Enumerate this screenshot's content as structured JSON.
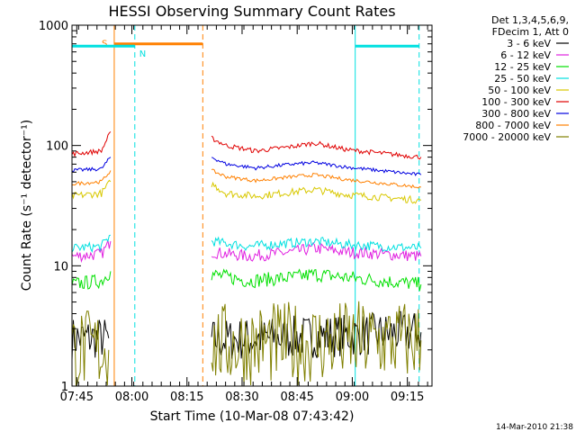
{
  "chart_data": {
    "type": "line",
    "title": "HESSI Observing Summary Count Rates",
    "xlabel": "Start Time (10-Mar-08 07:43:42)",
    "ylabel": "Count Rate (s⁻¹ detector⁻¹)",
    "x_unit": "minutes after 07:43:42",
    "xlim": [
      0,
      98
    ],
    "ylim": [
      1,
      1000
    ],
    "y_scale": "log",
    "x_ticks": [
      {
        "label": "07:45",
        "value": 1.3
      },
      {
        "label": "08:00",
        "value": 16.3
      },
      {
        "label": "08:15",
        "value": 31.3
      },
      {
        "label": "08:30",
        "value": 46.3
      },
      {
        "label": "08:45",
        "value": 61.3
      },
      {
        "label": "09:00",
        "value": 76.3
      },
      {
        "label": "09:15",
        "value": 91.3
      }
    ],
    "y_ticks": [
      {
        "label": "1",
        "value": 1
      },
      {
        "label": "10",
        "value": 10
      },
      {
        "label": "100",
        "value": 100
      },
      {
        "label": "1000",
        "value": 1000
      }
    ],
    "legend": {
      "placement": "top-right",
      "header": [
        "Det 1,3,4,5,6,9,",
        "FDecim 1, Att 0"
      ]
    },
    "series": [
      {
        "name": "3 - 6 keV",
        "color": "#000000",
        "segments": [
          {
            "x": [
              0,
              10
            ],
            "y": [
              2.5,
              2.5
            ]
          },
          {
            "x": [
              38,
              95
            ],
            "y": [
              2.4,
              2.8
            ]
          }
        ],
        "noise": 0.18
      },
      {
        "name": "6 - 12 keV",
        "color": "#e020e0",
        "segments": [
          {
            "x": [
              0,
              8,
              10.5
            ],
            "y": [
              12,
              12.5,
              16
            ]
          },
          {
            "x": [
              38,
              48,
              60,
              66,
              75,
              95
            ],
            "y": [
              13,
              12,
              13,
              14,
              13,
              12
            ]
          }
        ],
        "noise": 0.05
      },
      {
        "name": "12 - 25 keV",
        "color": "#00e000",
        "segments": [
          {
            "x": [
              0,
              8,
              10.5
            ],
            "y": [
              7,
              7.5,
              9
            ]
          },
          {
            "x": [
              38,
              48,
              60,
              66,
              75,
              95
            ],
            "y": [
              8.5,
              7.5,
              8,
              8.5,
              8,
              7
            ]
          }
        ],
        "noise": 0.06
      },
      {
        "name": "25 - 50 keV",
        "color": "#00e0e0",
        "segments": [
          {
            "x": [
              0,
              8,
              10.5
            ],
            "y": [
              14,
              14.5,
              18
            ]
          },
          {
            "x": [
              38,
              48,
              60,
              66,
              75,
              95
            ],
            "y": [
              16,
              14.5,
              15.5,
              16,
              15,
              14
            ]
          }
        ],
        "noise": 0.04
      },
      {
        "name": "50 - 100 keV",
        "color": "#d8c800",
        "segments": [
          {
            "x": [
              0,
              8,
              10.5
            ],
            "y": [
              38,
              40,
              50
            ]
          },
          {
            "x": [
              38,
              42,
              50,
              60,
              66,
              75,
              95
            ],
            "y": [
              48,
              40,
              38,
              41,
              43,
              39,
              35
            ]
          }
        ],
        "noise": 0.03
      },
      {
        "name": "100 - 300 keV",
        "color": "#e00000",
        "segments": [
          {
            "x": [
              0,
              8,
              10.5
            ],
            "y": [
              85,
              90,
              130
            ]
          },
          {
            "x": [
              38,
              42,
              50,
              60,
              66,
              75,
              95
            ],
            "y": [
              115,
              100,
              90,
              98,
              105,
              92,
              80
            ]
          }
        ],
        "noise": 0.02
      },
      {
        "name": "300 - 800 keV",
        "color": "#0000e0",
        "segments": [
          {
            "x": [
              0,
              8,
              10.5
            ],
            "y": [
              62,
              64,
              80
            ]
          },
          {
            "x": [
              38,
              42,
              50,
              60,
              66,
              75,
              95
            ],
            "y": [
              80,
              70,
              65,
              70,
              72,
              66,
              57
            ]
          }
        ],
        "noise": 0.015
      },
      {
        "name": "800 - 7000 keV",
        "color": "#ff8000",
        "segments": [
          {
            "x": [
              0,
              8,
              10.5
            ],
            "y": [
              48,
              50,
              62
            ]
          },
          {
            "x": [
              38,
              42,
              50,
              60,
              66,
              75,
              95
            ],
            "y": [
              62,
              55,
              51,
              55,
              57,
              52,
              45
            ]
          }
        ],
        "noise": 0.015
      },
      {
        "name": "7000 - 20000 keV",
        "color": "#808000",
        "segments": [
          {
            "x": [
              0,
              10
            ],
            "y": [
              2,
              2
            ]
          },
          {
            "x": [
              38,
              95
            ],
            "y": [
              2.2,
              2.4
            ]
          }
        ],
        "noise": 0.35
      }
    ],
    "annotations": [
      {
        "label": "S",
        "color": "#ff8000",
        "x": [
          11.5,
          35.6
        ],
        "y": 700
      },
      {
        "label": "N",
        "color": "#00e0e0",
        "x": [
          0,
          17.1
        ],
        "y": 670
      },
      {
        "label": "",
        "color": "#00e0e0",
        "x": [
          77.1,
          94.5
        ],
        "y": 670
      }
    ],
    "vertical_lines": [
      {
        "x": 0,
        "color": "#00e0e0",
        "style": "solid"
      },
      {
        "x": 17.1,
        "color": "#00e0e0",
        "style": "dashed"
      },
      {
        "x": 77.1,
        "color": "#00e0e0",
        "style": "solid"
      },
      {
        "x": 94.5,
        "color": "#00e0e0",
        "style": "dashed"
      },
      {
        "x": 11.5,
        "color": "#ff8000",
        "style": "solid"
      },
      {
        "x": 35.6,
        "color": "#ff8000",
        "style": "dashed"
      }
    ]
  },
  "footer_timestamp": "14-Mar-2010 21:38"
}
